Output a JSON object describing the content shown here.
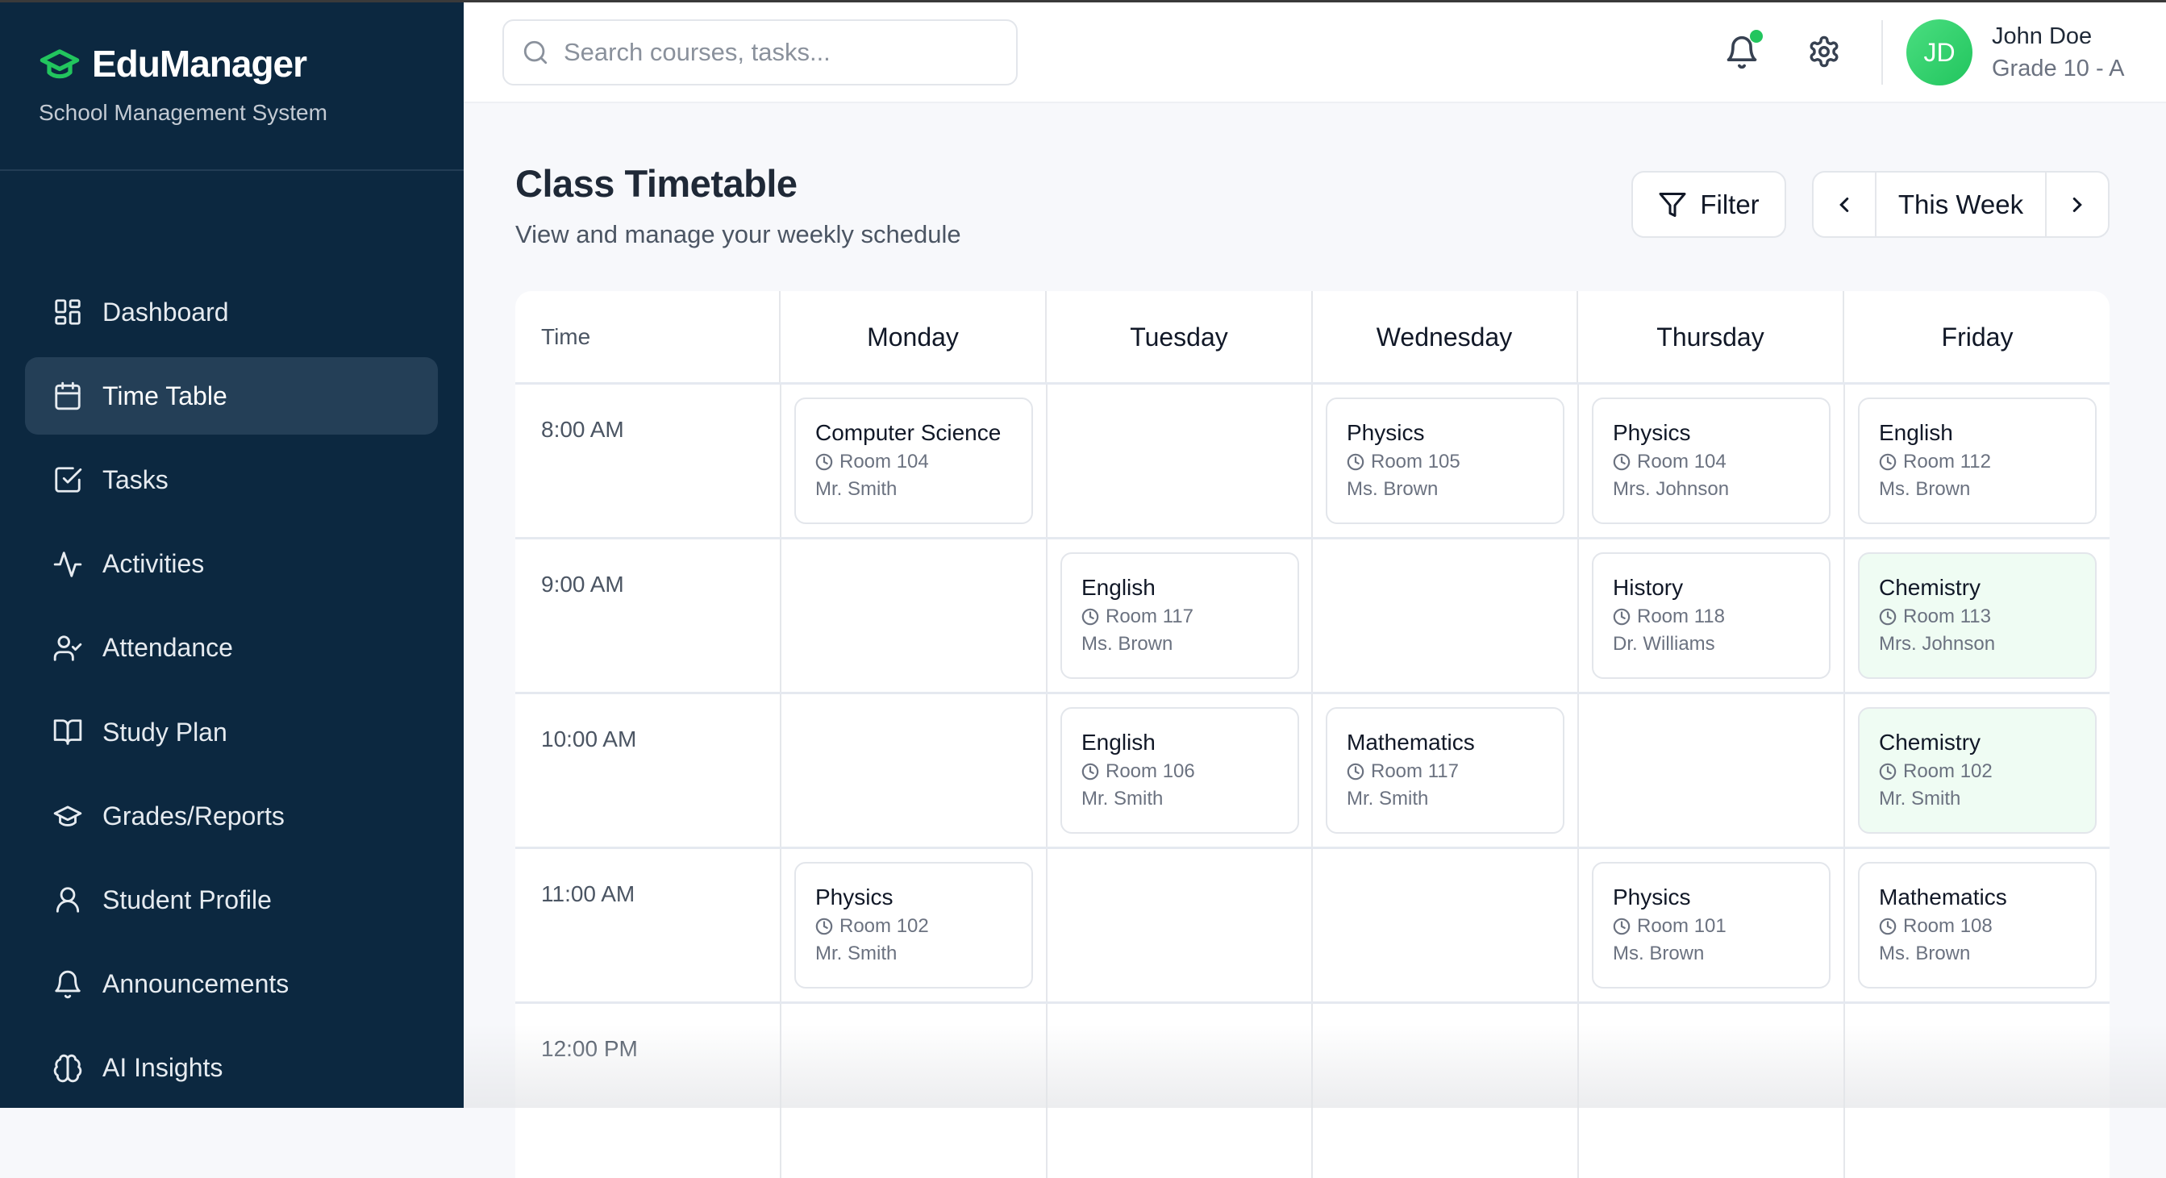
{
  "app": {
    "name": "EduManager",
    "subtitle": "School Management System",
    "brand_color": "#22c55e",
    "sidebar_color": "#0c2840"
  },
  "sidebar": {
    "items": [
      {
        "label": "Dashboard",
        "icon": "dashboard-icon"
      },
      {
        "label": "Time Table",
        "icon": "calendar-icon",
        "active": true
      },
      {
        "label": "Tasks",
        "icon": "checkbox-icon"
      },
      {
        "label": "Activities",
        "icon": "activity-icon"
      },
      {
        "label": "Attendance",
        "icon": "user-check-icon"
      },
      {
        "label": "Study Plan",
        "icon": "book-icon"
      },
      {
        "label": "Grades/Reports",
        "icon": "graduation-cap-icon"
      },
      {
        "label": "Student Profile",
        "icon": "user-icon"
      },
      {
        "label": "Announcements",
        "icon": "bell-icon"
      },
      {
        "label": "AI Insights",
        "icon": "brain-icon"
      }
    ]
  },
  "header": {
    "search_placeholder": "Search courses, tasks...",
    "user": {
      "initials": "JD",
      "name": "John Doe",
      "grade": "Grade 10 - A"
    },
    "has_notification": true
  },
  "page": {
    "title": "Class Timetable",
    "description": "View and manage your weekly schedule",
    "filter_label": "Filter",
    "week_label": "This Week"
  },
  "timetable": {
    "time_header": "Time",
    "days": [
      "Monday",
      "Tuesday",
      "Wednesday",
      "Thursday",
      "Friday"
    ],
    "rows": [
      {
        "time": "8:00 AM",
        "cells": [
          {
            "subject": "Computer Science",
            "room": "Room 104",
            "teacher": "Mr. Smith"
          },
          null,
          {
            "subject": "Physics",
            "room": "Room 105",
            "teacher": "Ms. Brown"
          },
          {
            "subject": "Physics",
            "room": "Room 104",
            "teacher": "Mrs. Johnson"
          },
          {
            "subject": "English",
            "room": "Room 112",
            "teacher": "Ms. Brown"
          }
        ]
      },
      {
        "time": "9:00 AM",
        "cells": [
          null,
          {
            "subject": "English",
            "room": "Room 117",
            "teacher": "Ms. Brown"
          },
          null,
          {
            "subject": "History",
            "room": "Room 118",
            "teacher": "Dr. Williams"
          },
          {
            "subject": "Chemistry",
            "room": "Room 113",
            "teacher": "Mrs. Johnson",
            "highlight": true
          }
        ]
      },
      {
        "time": "10:00 AM",
        "cells": [
          null,
          {
            "subject": "English",
            "room": "Room 106",
            "teacher": "Mr. Smith"
          },
          {
            "subject": "Mathematics",
            "room": "Room 117",
            "teacher": "Mr. Smith"
          },
          null,
          {
            "subject": "Chemistry",
            "room": "Room 102",
            "teacher": "Mr. Smith",
            "highlight": true
          }
        ]
      },
      {
        "time": "11:00 AM",
        "cells": [
          {
            "subject": "Physics",
            "room": "Room 102",
            "teacher": "Mr. Smith"
          },
          null,
          null,
          {
            "subject": "Physics",
            "room": "Room 101",
            "teacher": "Ms. Brown"
          },
          {
            "subject": "Mathematics",
            "room": "Room 108",
            "teacher": "Ms. Brown"
          }
        ]
      },
      {
        "time": "12:00 PM",
        "cells": [
          null,
          null,
          null,
          null,
          null
        ]
      }
    ]
  }
}
